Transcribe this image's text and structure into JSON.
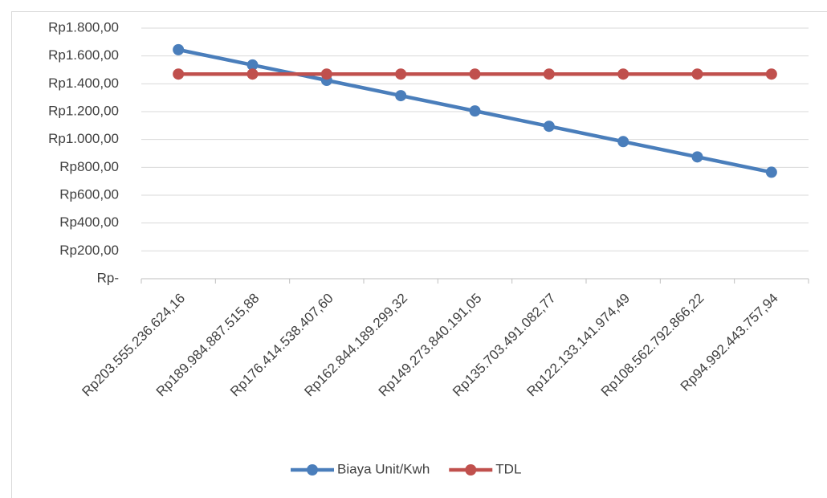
{
  "chart_data": {
    "type": "line",
    "categories": [
      "Rp203.555.236.624,16",
      "Rp189.984.887.515,88",
      "Rp176.414.538.407,60",
      "Rp162.844.189.299,32",
      "Rp149.273.840.191,05",
      "Rp135.703.491.082,77",
      "Rp122.133.141.974,49",
      "Rp108.562.792.866,22",
      "Rp94.992.443.757,94"
    ],
    "series": [
      {
        "name": "Biaya Unit/Kwh",
        "color": "#4a7ebb",
        "values": [
          1645,
          1535,
          1425,
          1315,
          1205,
          1095,
          985,
          875,
          765
        ]
      },
      {
        "name": "TDL",
        "color": "#c0504d",
        "values": [
          1470,
          1470,
          1470,
          1470,
          1470,
          1470,
          1470,
          1470,
          1470
        ]
      }
    ],
    "ylim": [
      0,
      1800
    ],
    "yticks": [
      {
        "value": 0,
        "label": "Rp-"
      },
      {
        "value": 200,
        "label": "Rp200,00"
      },
      {
        "value": 400,
        "label": "Rp400,00"
      },
      {
        "value": 600,
        "label": "Rp600,00"
      },
      {
        "value": 800,
        "label": "Rp800,00"
      },
      {
        "value": 1000,
        "label": "Rp1.000,00"
      },
      {
        "value": 1200,
        "label": "Rp1.200,00"
      },
      {
        "value": 1400,
        "label": "Rp1.400,00"
      },
      {
        "value": 1600,
        "label": "Rp1.600,00"
      },
      {
        "value": 1800,
        "label": "Rp1.800,00"
      }
    ],
    "grid": true,
    "legend": "bottom"
  }
}
